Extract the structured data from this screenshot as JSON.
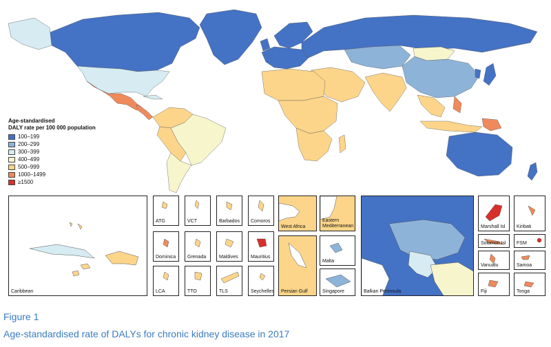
{
  "colors": {
    "c100": "#4472c4",
    "c200": "#8db3d9",
    "c300": "#d6ebf2",
    "c400": "#f7f5cc",
    "c500": "#fcd58a",
    "c1000": "#ef8a5c",
    "c1500": "#d7302a",
    "nodata": "#ffffff",
    "caption": "#3a7bbf"
  },
  "legend": {
    "title_line1": "Age-standardised",
    "title_line2": "DALY rate per 100 000 population",
    "items": [
      {
        "label": "100–199",
        "color": "#4472c4"
      },
      {
        "label": "200–299",
        "color": "#8db3d9"
      },
      {
        "label": "300–399",
        "color": "#d6ebf2"
      },
      {
        "label": "400–499",
        "color": "#f7f5cc"
      },
      {
        "label": "500–999",
        "color": "#fcd58a"
      },
      {
        "label": "1000–1499",
        "color": "#ef8a5c"
      },
      {
        "label": "≥1500",
        "color": "#d7302a"
      }
    ]
  },
  "insets": {
    "caribbean": "Caribbean",
    "atg": "ATG",
    "vct": "VCT",
    "barbados": "Barbados",
    "comoros": "Comoros",
    "west_africa": "West Africa",
    "eastern_med": "Eastern Mediterranean",
    "dominica": "Dominica",
    "grenada": "Grenada",
    "maldives": "Maldives",
    "mauritius": "Mauritius",
    "persian_gulf": "Persian Gulf",
    "malta": "Malta",
    "lca": "LCA",
    "tto": "TTO",
    "tls": "TLS",
    "seychelles": "Seychelles",
    "singapore": "Singapore",
    "balkan": "Balkan Peninsula",
    "marshall": "Marshall Isl",
    "kiribati": "Kiribati",
    "solomon": "Solomon Isl",
    "fsm": "FSM",
    "vanuatu": "Vanuatu",
    "samoa": "Samoa",
    "fiji": "Fiji",
    "tonga": "Tonga"
  },
  "figure": {
    "label": "Figure 1",
    "caption": "Age-standardised rate of DALYs for chronic kidney disease in 2017"
  }
}
